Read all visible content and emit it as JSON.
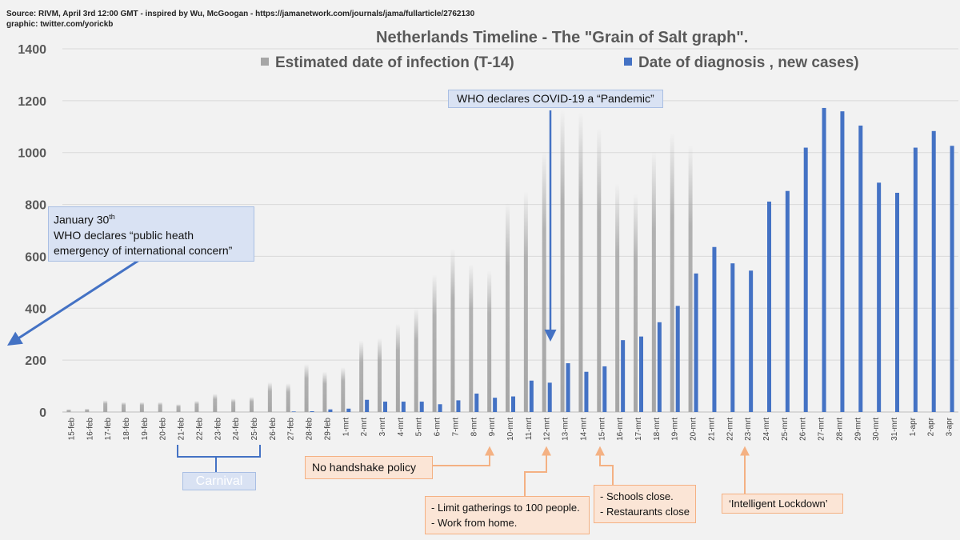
{
  "source": {
    "line1": "Source: RIVM, April 3rd 12:00 GMT  -  inspired by Wu, McGoogan - https://jamanetwork.com/journals/jama/fullarticle/2762130",
    "line2": "graphic: twitter.com/yorickb"
  },
  "colors": {
    "infection": "#a6a6a6",
    "diagnosis": "#4472c4",
    "arrow_blue": "#4472c4",
    "arrow_orange": "#f4b183"
  },
  "chart_data": {
    "type": "bar",
    "title": "Netherlands Timeline - The \"Grain of Salt graph\".",
    "ylim": [
      0,
      1400
    ],
    "yticks": [
      0,
      200,
      400,
      600,
      800,
      1000,
      1200,
      1400
    ],
    "grid": true,
    "legend_position": "top",
    "categories": [
      "15-feb",
      "16-feb",
      "17-feb",
      "18-feb",
      "19-feb",
      "20-feb",
      "21-feb",
      "22-feb",
      "23-feb",
      "24-feb",
      "25-feb",
      "26-feb",
      "27-feb",
      "28-feb",
      "29-feb",
      "1-mrt",
      "2-mrt",
      "3-mrt",
      "4-mrt",
      "5-mrt",
      "6-mrt",
      "7-mrt",
      "8-mrt",
      "9-mrt",
      "10-mrt",
      "11-mrt",
      "12-mrt",
      "13-mrt",
      "14-mrt",
      "15-mrt",
      "16-mrt",
      "17-mrt",
      "18-mrt",
      "19-mrt",
      "20-mrt",
      "21-mrt",
      "22-mrt",
      "23-mrt",
      "24-mrt",
      "25-mrt",
      "26-mrt",
      "27-mrt",
      "28-mrt",
      "29-mrt",
      "30-mrt",
      "31-mrt",
      "1-apr",
      "2-apr",
      "3-apr"
    ],
    "series": [
      {
        "name": "Estimated date of infection  (T-14)",
        "values": [
          10,
          12,
          45,
          38,
          38,
          38,
          30,
          43,
          70,
          52,
          58,
          115,
          110,
          185,
          155,
          172,
          275,
          285,
          340,
          400,
          530,
          630,
          570,
          545,
          805,
          850,
          1005,
          1165,
          1155,
          1095,
          880,
          840,
          1005,
          1075,
          1030,
          0,
          0,
          0,
          0,
          0,
          0,
          0,
          0,
          0,
          0,
          0,
          0,
          0,
          0
        ]
      },
      {
        "name": "Date of diagnosis , new cases)",
        "values": [
          0,
          0,
          0,
          0,
          0,
          0,
          0,
          0,
          0,
          0,
          0,
          0,
          2,
          3,
          10,
          13,
          47,
          40,
          40,
          40,
          30,
          45,
          71,
          55,
          60,
          121,
          113,
          188,
          155,
          176,
          277,
          291,
          346,
          409,
          534,
          636,
          573,
          545,
          811,
          852,
          1019,
          1172,
          1159,
          1104,
          884,
          845,
          1019,
          1083,
          1026
        ]
      }
    ]
  },
  "annotations": {
    "who_pandemic": "WHO declares COVID-19 a “Pandemic”",
    "who_emergency_date": "January 30",
    "who_emergency_sup": "th",
    "who_emergency_line2": "WHO declares “public heath",
    "who_emergency_line3": "emergency of international concern”",
    "carnival": "Carnival",
    "handshake": "No handshake policy",
    "gatherings_line1": "- Limit gatherings to 100 people.",
    "gatherings_line2": "- Work from home.",
    "schools_line1": "- Schools close.",
    "schools_line2": "- Restaurants close",
    "lockdown": "‘Intelligent Lockdown’"
  }
}
